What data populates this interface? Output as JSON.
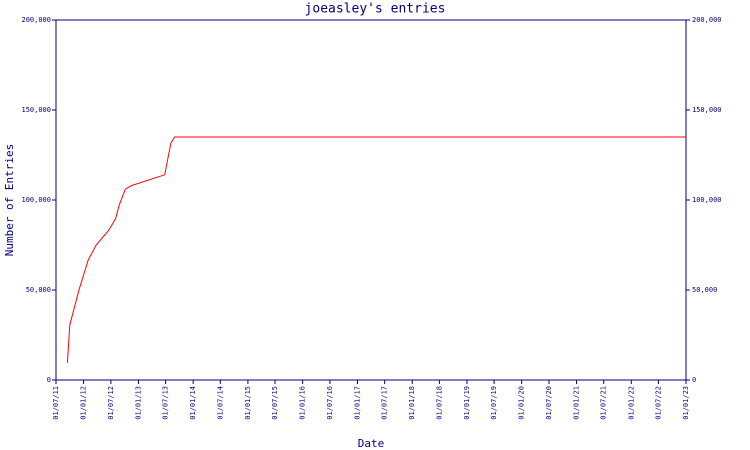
{
  "chart_data": {
    "type": "line",
    "title": "joeasley's entries",
    "x_label": "Date",
    "y_label": "Number of Entries",
    "x": [
      "2011-09-15",
      "2011-10-01",
      "2011-12-01",
      "2012-02-01",
      "2012-03-25",
      "2012-06-15",
      "2012-08-01",
      "2012-08-25",
      "2012-10-05",
      "2012-11-15",
      "2013-06-25",
      "2013-08-05",
      "2013-08-30",
      "2023-01-01"
    ],
    "series": [
      {
        "name": "entries",
        "color": "#ff0000",
        "values": [
          9500,
          30500,
          50000,
          66700,
          75000,
          83000,
          89500,
          97000,
          106000,
          108000,
          114000,
          131500,
          135000,
          135000
        ]
      }
    ],
    "xlim": [
      "2011-07-01",
      "2023-01-01"
    ],
    "xticks": [
      {
        "value": "2011-07-01",
        "label": "01/07/11"
      },
      {
        "value": "2012-01-01",
        "label": "01/01/12"
      },
      {
        "value": "2012-07-01",
        "label": "01/07/12"
      },
      {
        "value": "2013-01-01",
        "label": "01/01/13"
      },
      {
        "value": "2013-07-01",
        "label": "01/07/13"
      },
      {
        "value": "2014-01-01",
        "label": "01/01/14"
      },
      {
        "value": "2014-07-01",
        "label": "01/07/14"
      },
      {
        "value": "2015-01-01",
        "label": "01/01/15"
      },
      {
        "value": "2015-07-01",
        "label": "01/07/15"
      },
      {
        "value": "2016-01-01",
        "label": "01/01/16"
      },
      {
        "value": "2016-07-01",
        "label": "01/07/16"
      },
      {
        "value": "2017-01-01",
        "label": "01/01/17"
      },
      {
        "value": "2017-07-01",
        "label": "01/07/17"
      },
      {
        "value": "2018-01-01",
        "label": "01/01/18"
      },
      {
        "value": "2018-07-01",
        "label": "01/07/18"
      },
      {
        "value": "2019-01-01",
        "label": "01/01/19"
      },
      {
        "value": "2019-07-01",
        "label": "01/07/19"
      },
      {
        "value": "2020-01-01",
        "label": "01/01/20"
      },
      {
        "value": "2020-07-01",
        "label": "01/07/20"
      },
      {
        "value": "2021-01-01",
        "label": "01/01/21"
      },
      {
        "value": "2021-07-01",
        "label": "01/07/21"
      },
      {
        "value": "2022-01-01",
        "label": "01/01/22"
      },
      {
        "value": "2022-07-01",
        "label": "01/07/22"
      },
      {
        "value": "2023-01-01",
        "label": "01/01/23"
      }
    ],
    "ylim": [
      0,
      200000
    ],
    "yticks": [
      0,
      {
        "value": 50000,
        "label": "50,000"
      },
      {
        "value": 100000,
        "label": "100,000"
      },
      {
        "value": 150000,
        "label": "150,000"
      },
      {
        "value": 200000,
        "label": "200,000"
      }
    ],
    "y2lim": [
      0,
      200000
    ],
    "y2ticks": [
      0,
      {
        "value": 50000,
        "label": "50,000"
      },
      {
        "value": 100000,
        "label": "100,000"
      },
      {
        "value": 150000,
        "label": "150,000"
      },
      {
        "value": 200000,
        "label": "200,000"
      }
    ],
    "axis_color": "#000080"
  }
}
